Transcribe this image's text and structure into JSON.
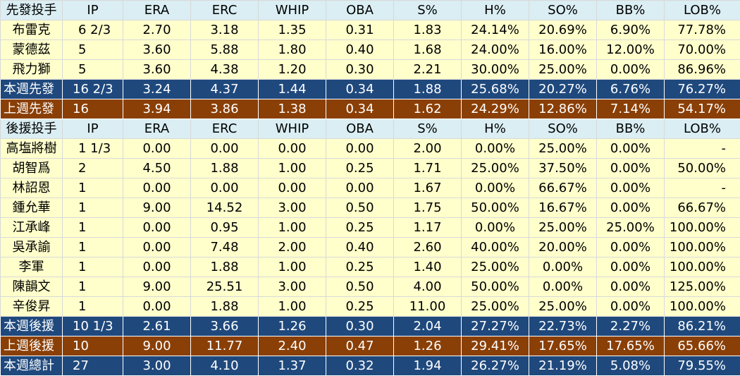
{
  "headers": {
    "starters": [
      "先發投手",
      "IP",
      "ERA",
      "ERC",
      "WHIP",
      "OBA",
      "S%",
      "H%",
      "SO%",
      "BB%",
      "LOB%"
    ],
    "relievers": [
      "後援投手",
      "IP",
      "ERA",
      "ERC",
      "WHIP",
      "OBA",
      "S%",
      "H%",
      "SO%",
      "BB%",
      "LOB%"
    ]
  },
  "starters": [
    [
      "布雷克",
      "6 2/3",
      "2.70",
      "3.18",
      "1.35",
      "0.31",
      "1.83",
      "24.14%",
      "20.69%",
      "6.90%",
      "77.78%"
    ],
    [
      "蒙德茲",
      "5",
      "3.60",
      "5.88",
      "1.80",
      "0.40",
      "1.68",
      "24.00%",
      "16.00%",
      "12.00%",
      "70.00%"
    ],
    [
      "飛力獅",
      "5",
      "3.60",
      "4.38",
      "1.20",
      "0.30",
      "2.21",
      "30.00%",
      "25.00%",
      "0.00%",
      "86.96%"
    ]
  ],
  "starter_summary": [
    [
      "本週先發",
      "16 2/3",
      "3.24",
      "4.37",
      "1.44",
      "0.34",
      "1.88",
      "25.68%",
      "20.27%",
      "6.76%",
      "76.27%"
    ],
    [
      "上週先發",
      "16",
      "3.94",
      "3.86",
      "1.38",
      "0.34",
      "1.62",
      "24.29%",
      "12.86%",
      "7.14%",
      "54.17%"
    ]
  ],
  "relievers": [
    [
      "高塩將樹",
      "1 1/3",
      "0.00",
      "0.00",
      "0.00",
      "0.00",
      "2.00",
      "0.00%",
      "25.00%",
      "0.00%",
      "-"
    ],
    [
      "胡智爲",
      "2",
      "4.50",
      "1.88",
      "1.00",
      "0.25",
      "1.71",
      "25.00%",
      "37.50%",
      "0.00%",
      "50.00%"
    ],
    [
      "林詔恩",
      "1",
      "0.00",
      "0.00",
      "0.00",
      "0.00",
      "1.67",
      "0.00%",
      "66.67%",
      "0.00%",
      "-"
    ],
    [
      "鍾允華",
      "1",
      "9.00",
      "14.52",
      "3.00",
      "0.50",
      "1.75",
      "50.00%",
      "16.67%",
      "0.00%",
      "66.67%"
    ],
    [
      "江承峰",
      "1",
      "0.00",
      "0.95",
      "1.00",
      "0.25",
      "1.17",
      "0.00%",
      "25.00%",
      "25.00%",
      "100.00%"
    ],
    [
      "吳承諭",
      "1",
      "0.00",
      "7.48",
      "2.00",
      "0.40",
      "2.60",
      "40.00%",
      "20.00%",
      "0.00%",
      "100.00%"
    ],
    [
      "李軍",
      "1",
      "0.00",
      "1.88",
      "1.00",
      "0.25",
      "1.40",
      "25.00%",
      "0.00%",
      "0.00%",
      "100.00%"
    ],
    [
      "陳韻文",
      "1",
      "9.00",
      "25.51",
      "3.00",
      "0.50",
      "4.00",
      "50.00%",
      "0.00%",
      "0.00%",
      "125.00%"
    ],
    [
      "辛俊昇",
      "1",
      "0.00",
      "1.88",
      "1.00",
      "0.25",
      "11.00",
      "25.00%",
      "25.00%",
      "0.00%",
      "100.00%"
    ]
  ],
  "reliever_summary": [
    [
      "本週後援",
      "10 1/3",
      "2.61",
      "3.66",
      "1.26",
      "0.30",
      "2.04",
      "27.27%",
      "22.73%",
      "2.27%",
      "86.21%"
    ],
    [
      "上週後援",
      "10",
      "9.00",
      "11.77",
      "2.40",
      "0.47",
      "1.26",
      "29.41%",
      "17.65%",
      "17.65%",
      "65.66%"
    ]
  ],
  "total": [
    "本週總計",
    "27",
    "3.00",
    "4.10",
    "1.37",
    "0.32",
    "1.94",
    "26.27%",
    "21.19%",
    "5.08%",
    "79.55%"
  ],
  "colors": {
    "header_bg": "#daeef3",
    "data_bg": "#ffffcc",
    "this_week_bg": "#1f497d",
    "last_week_bg": "#8a3f06"
  }
}
